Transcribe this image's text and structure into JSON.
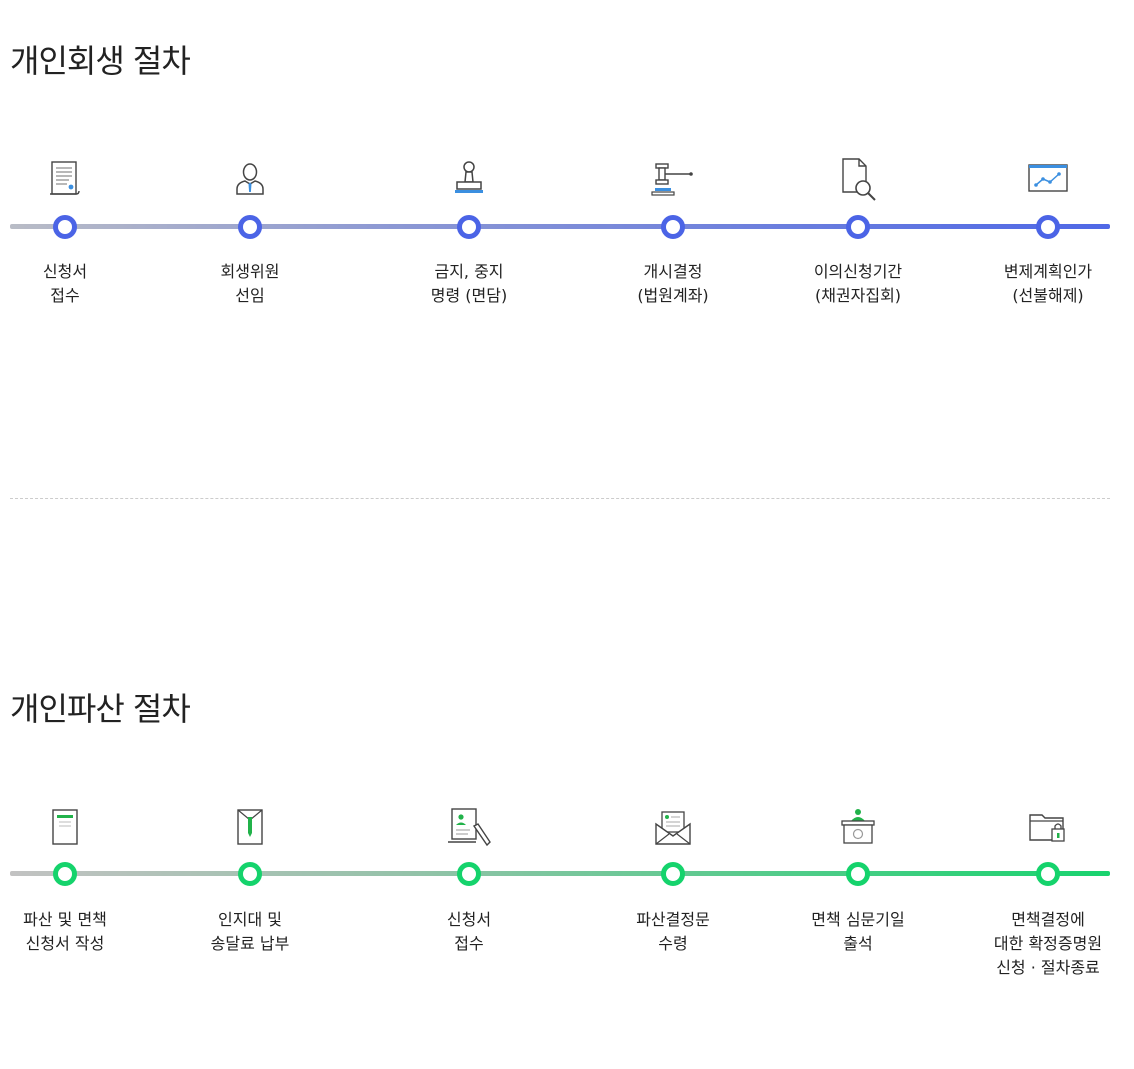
{
  "rehab": {
    "title": "개인회생 절차",
    "accent": "#4b64e6",
    "steps": [
      {
        "icon": "document-scroll-icon",
        "lines": [
          "신청서",
          "접수"
        ]
      },
      {
        "icon": "person-tie-icon",
        "lines": [
          "회생위원",
          "선임"
        ]
      },
      {
        "icon": "stamp-icon",
        "lines": [
          "금지, 중지",
          "명령 (면담)"
        ]
      },
      {
        "icon": "gavel-icon",
        "lines": [
          "개시결정",
          "(법원계좌)"
        ]
      },
      {
        "icon": "document-search-icon",
        "lines": [
          "이의신청기간",
          "(채권자집회)"
        ]
      },
      {
        "icon": "chart-board-icon",
        "lines": [
          "변제계획인가",
          "(선불해제)"
        ]
      }
    ]
  },
  "bankrupt": {
    "title": "개인파산 절차",
    "accent": "#15d36c",
    "steps": [
      {
        "icon": "form-document-icon",
        "lines": [
          "파산 및 면책",
          "신청서 작성"
        ]
      },
      {
        "icon": "envelope-pen-icon",
        "lines": [
          "인지대 및",
          "송달료 납부"
        ]
      },
      {
        "icon": "document-signature-icon",
        "lines": [
          "신청서",
          "접수"
        ]
      },
      {
        "icon": "open-mail-icon",
        "lines": [
          "파산결정문",
          "수령"
        ]
      },
      {
        "icon": "court-attendance-icon",
        "lines": [
          "면책 심문기일",
          "출석"
        ]
      },
      {
        "icon": "folder-lock-icon",
        "lines": [
          "면책결정에",
          "대한 확정증명원",
          "신청 · 절차종료"
        ]
      }
    ]
  }
}
